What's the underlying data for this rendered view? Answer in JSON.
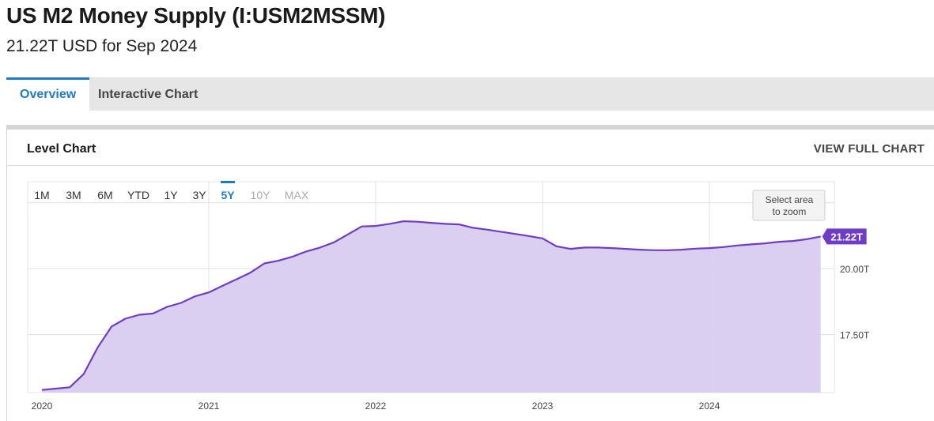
{
  "header": {
    "title": "US M2 Money Supply (I:USM2MSSM)",
    "subtitle": "21.22T USD for Sep 2024"
  },
  "tabs": [
    {
      "label": "Overview",
      "active": true
    },
    {
      "label": "Interactive Chart",
      "active": false
    }
  ],
  "card": {
    "title": "Level Chart",
    "view_full_label": "VIEW FULL CHART"
  },
  "chart_controls": {
    "ranges": [
      {
        "label": "1M",
        "state": "enabled"
      },
      {
        "label": "3M",
        "state": "enabled"
      },
      {
        "label": "6M",
        "state": "enabled"
      },
      {
        "label": "YTD",
        "state": "enabled"
      },
      {
        "label": "1Y",
        "state": "enabled"
      },
      {
        "label": "3Y",
        "state": "enabled"
      },
      {
        "label": "5Y",
        "state": "active"
      },
      {
        "label": "10Y",
        "state": "disabled"
      },
      {
        "label": "MAX",
        "state": "disabled"
      }
    ],
    "zoom_hint": [
      "Select area",
      "to zoom"
    ]
  },
  "colors": {
    "line": "#6f3cc4",
    "fill": "#d9ccf0",
    "accent": "#1f7ac7",
    "grid": "#e0e0e0"
  },
  "chart_data": {
    "type": "area",
    "series": [
      {
        "x": [
          "2020-01",
          "2020-02",
          "2020-03",
          "2020-04",
          "2020-05",
          "2020-06",
          "2020-07",
          "2020-08",
          "2020-09",
          "2020-10",
          "2020-11",
          "2020-12",
          "2021-01",
          "2021-02",
          "2021-03",
          "2021-04",
          "2021-05",
          "2021-06",
          "2021-07",
          "2021-08",
          "2021-09",
          "2021-10",
          "2021-11",
          "2021-12",
          "2022-01",
          "2022-02",
          "2022-03",
          "2022-04",
          "2022-05",
          "2022-06",
          "2022-07",
          "2022-08",
          "2022-09",
          "2022-10",
          "2022-11",
          "2022-12",
          "2023-01",
          "2023-02",
          "2023-03",
          "2023-04",
          "2023-05",
          "2023-06",
          "2023-07",
          "2023-08",
          "2023-09",
          "2023-10",
          "2023-11",
          "2023-12",
          "2024-01",
          "2024-02",
          "2024-03",
          "2024-04",
          "2024-05",
          "2024-06",
          "2024-07",
          "2024-08",
          "2024-09"
        ],
        "values": [
          15.4,
          15.45,
          15.5,
          16.0,
          17.0,
          17.8,
          18.1,
          18.25,
          18.3,
          18.55,
          18.7,
          18.95,
          19.1,
          19.35,
          19.6,
          19.85,
          20.2,
          20.3,
          20.45,
          20.65,
          20.8,
          21.0,
          21.3,
          21.6,
          21.62,
          21.7,
          21.8,
          21.78,
          21.74,
          21.7,
          21.68,
          21.55,
          21.48,
          21.4,
          21.32,
          21.24,
          21.15,
          20.85,
          20.75,
          20.8,
          20.8,
          20.78,
          20.75,
          20.72,
          20.7,
          20.7,
          20.72,
          20.76,
          20.78,
          20.82,
          20.88,
          20.92,
          20.96,
          21.02,
          21.05,
          21.12,
          21.22
        ]
      }
    ],
    "ylim": [
      15.3,
      23.3
    ],
    "y_ticks": [
      {
        "value": 20.0,
        "label": "20.00T"
      },
      {
        "value": 17.5,
        "label": "17.50T"
      }
    ],
    "x_ticks": [
      {
        "value": "2020-01",
        "label": "2020"
      },
      {
        "value": "2021-01",
        "label": "2021"
      },
      {
        "value": "2022-01",
        "label": "2022"
      },
      {
        "value": "2023-01",
        "label": "2023"
      },
      {
        "value": "2024-01",
        "label": "2024"
      }
    ],
    "last_value_label": "21.22T",
    "grid": true
  }
}
